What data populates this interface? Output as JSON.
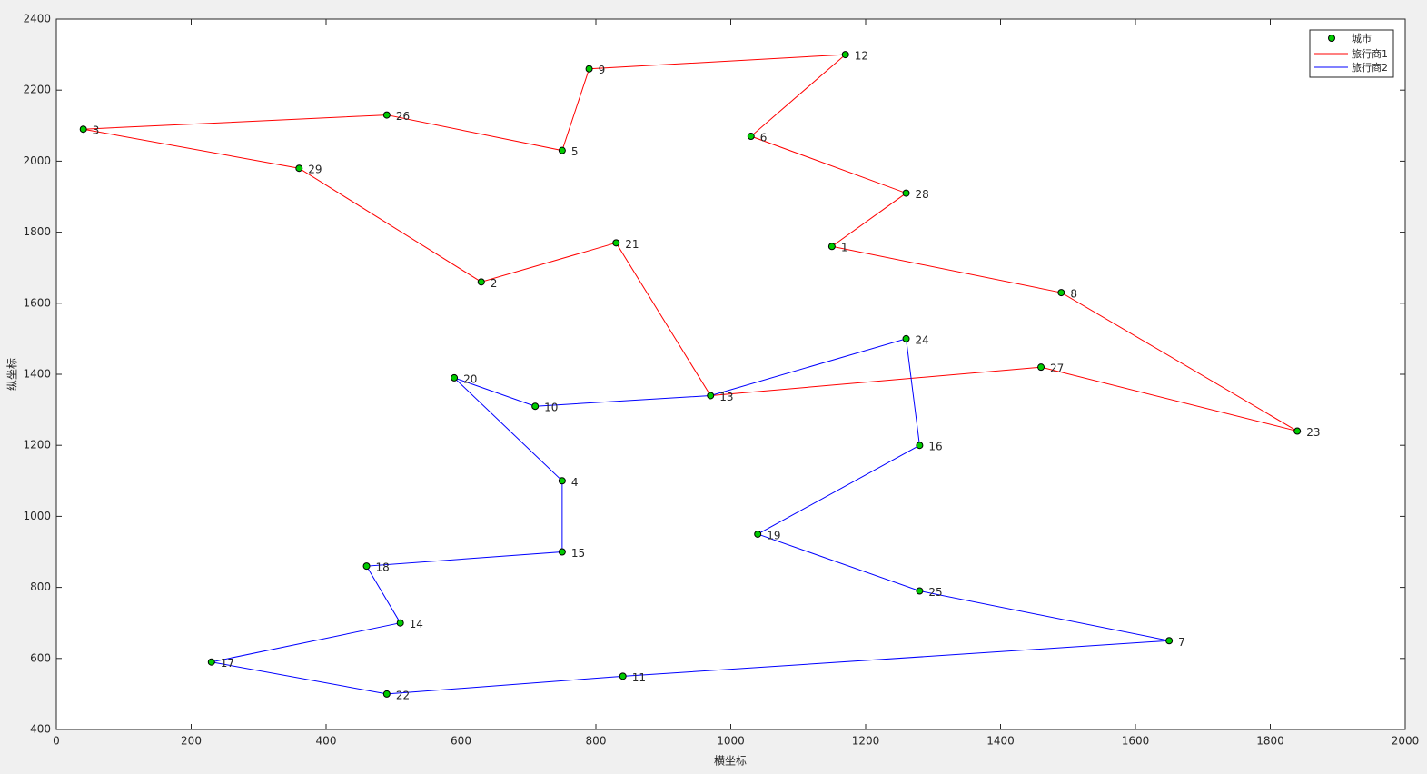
{
  "chart_data": {
    "type": "route",
    "xlabel": "横坐标",
    "ylabel": "纵坐标",
    "xlim": [
      0,
      2000
    ],
    "xticks": [
      0,
      200,
      400,
      600,
      800,
      1000,
      1200,
      1400,
      1600,
      1800,
      2000
    ],
    "ylim": [
      400,
      2400
    ],
    "yticks": [
      400,
      600,
      800,
      1000,
      1200,
      1400,
      1600,
      1800,
      2000,
      2200,
      2400
    ],
    "grid": false,
    "legend": "upper right",
    "cities": {
      "name": "城市",
      "color": "#00cc00",
      "labels": [
        1,
        2,
        3,
        4,
        5,
        6,
        7,
        8,
        9,
        10,
        11,
        12,
        13,
        14,
        15,
        16,
        17,
        18,
        19,
        20,
        21,
        22,
        23,
        24,
        25,
        26,
        27,
        28,
        29
      ],
      "x": [
        1150,
        630,
        40,
        750,
        750,
        1030,
        1650,
        1490,
        790,
        710,
        840,
        1170,
        970,
        510,
        750,
        1280,
        230,
        460,
        1040,
        590,
        830,
        490,
        1840,
        1260,
        1280,
        490,
        1460,
        1260,
        360
      ],
      "y": [
        1760,
        1660,
        2090,
        1100,
        2030,
        2070,
        650,
        1630,
        2260,
        1310,
        550,
        2300,
        1340,
        700,
        900,
        1200,
        590,
        860,
        950,
        1390,
        1770,
        500,
        1240,
        1500,
        790,
        2130,
        1420,
        1910,
        1980
      ]
    },
    "series": [
      {
        "name": "旅行商1",
        "color": "#ff0000",
        "route": [
          13,
          21,
          2,
          29,
          3,
          26,
          5,
          9,
          12,
          6,
          28,
          1,
          8,
          23,
          27,
          13
        ]
      },
      {
        "name": "旅行商2",
        "color": "#0000ff",
        "route": [
          13,
          24,
          16,
          19,
          25,
          7,
          11,
          22,
          17,
          14,
          18,
          15,
          4,
          20,
          10,
          13
        ]
      }
    ]
  }
}
